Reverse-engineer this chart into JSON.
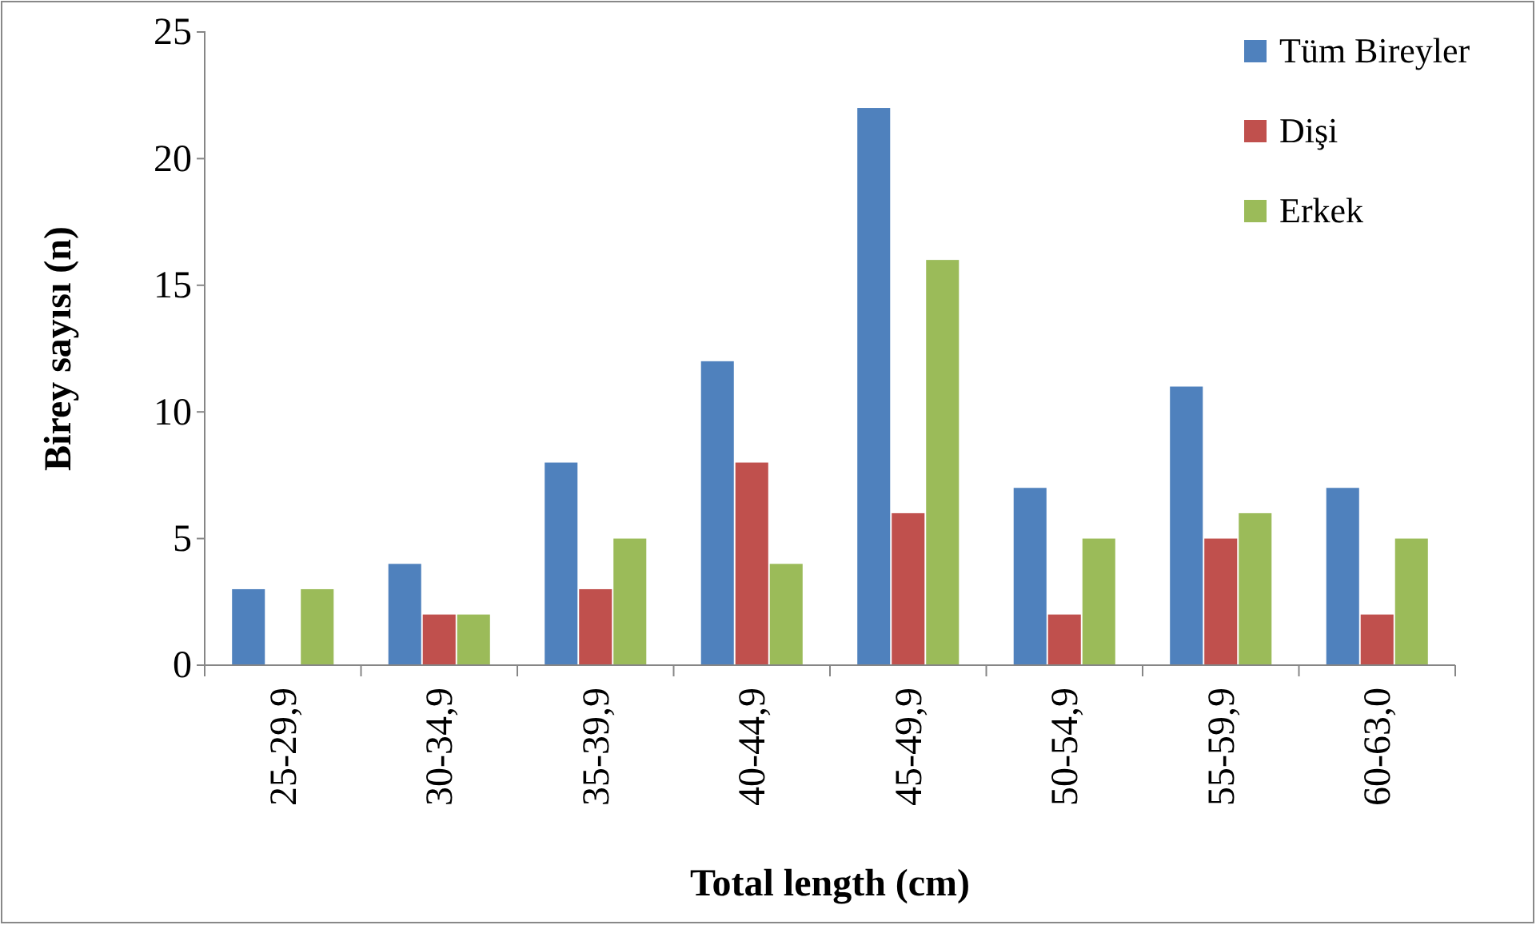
{
  "chart_data": {
    "type": "bar",
    "xlabel": "Total length (cm)",
    "ylabel": "Birey sayısı (n)",
    "categories": [
      "25-29,9",
      "30-34,9",
      "35-39,9",
      "40-44,9",
      "45-49,9",
      "50-54,9",
      "55-59,9",
      "60-63,0"
    ],
    "series": [
      {
        "name": "Tüm Bireyler",
        "color": "#4f81bd",
        "values": [
          3,
          4,
          8,
          12,
          22,
          7,
          11,
          7
        ]
      },
      {
        "name": "Dişi",
        "color": "#c0504d",
        "values": [
          0,
          2,
          3,
          8,
          6,
          2,
          5,
          2
        ]
      },
      {
        "name": "Erkek",
        "color": "#9bbb59",
        "values": [
          3,
          2,
          5,
          4,
          16,
          5,
          6,
          5
        ]
      }
    ],
    "ylim": [
      0,
      25
    ],
    "yticks": [
      0,
      5,
      10,
      15,
      20,
      25
    ],
    "grid": false,
    "legend": "top right"
  }
}
